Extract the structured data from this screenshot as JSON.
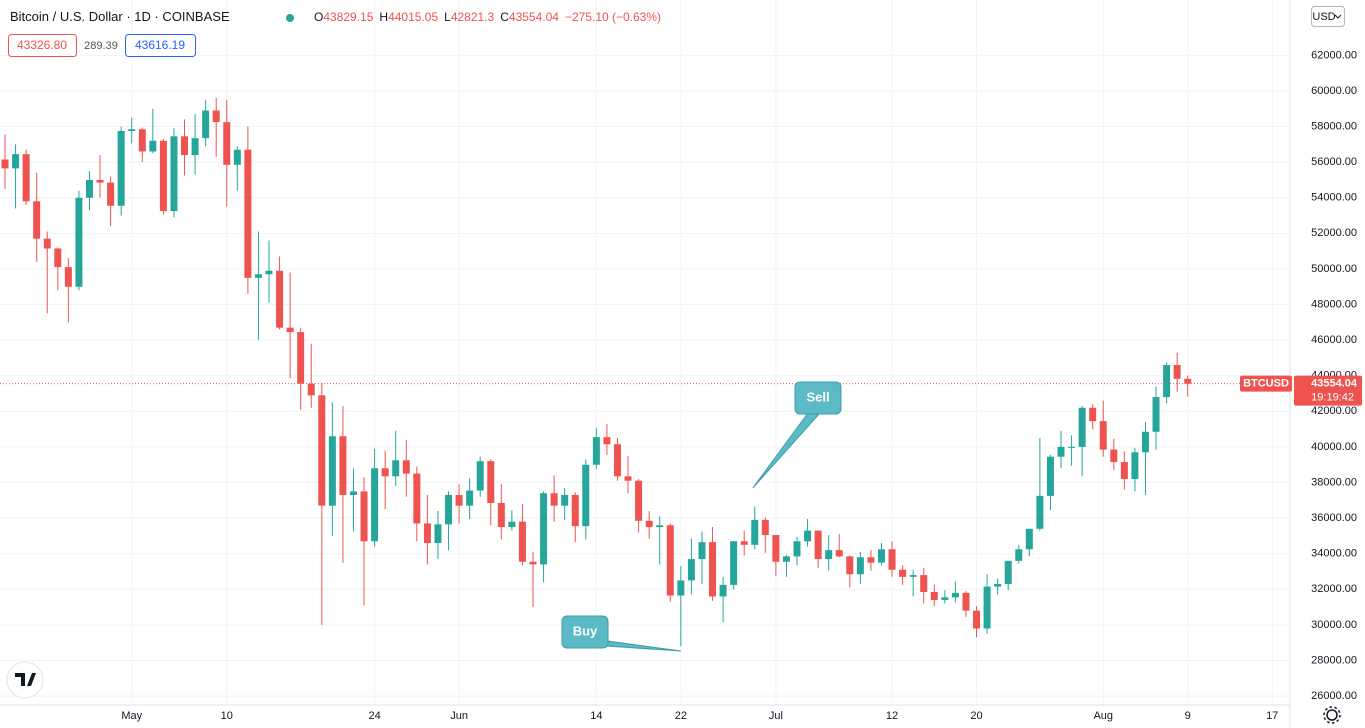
{
  "header": {
    "title": "Bitcoin / U.S. Dollar · 1D · COINBASE",
    "ohlc_labels": [
      "O",
      "H",
      "L",
      "C"
    ],
    "change": {
      "value": -275.1,
      "label": "−275.10 (−0.63%)"
    },
    "bid": {
      "value": 43326.8,
      "label": "43326.80"
    },
    "spread": 289.39,
    "ask": 43616.19,
    "currency": "USD"
  },
  "chart_data": {
    "type": "candlestick",
    "x": [
      "04-19",
      "04-20",
      "04-21",
      "04-22",
      "04-23",
      "04-24",
      "04-25",
      "04-26",
      "04-27",
      "04-28",
      "04-29",
      "04-30",
      "05-01",
      "05-02",
      "05-03",
      "05-04",
      "05-05",
      "05-06",
      "05-07",
      "05-08",
      "05-09",
      "05-10",
      "05-11",
      "05-12",
      "05-13",
      "05-14",
      "05-15",
      "05-16",
      "05-17",
      "05-18",
      "05-19",
      "05-20",
      "05-21",
      "05-22",
      "05-23",
      "05-24",
      "05-25",
      "05-26",
      "05-27",
      "05-28",
      "05-29",
      "05-30",
      "05-31",
      "06-01",
      "06-02",
      "06-03",
      "06-04",
      "06-05",
      "06-06",
      "06-07",
      "06-08",
      "06-09",
      "06-10",
      "06-11",
      "06-12",
      "06-13",
      "06-14",
      "06-15",
      "06-16",
      "06-17",
      "06-18",
      "06-19",
      "06-20",
      "06-21",
      "06-22",
      "06-23",
      "06-24",
      "06-25",
      "06-26",
      "06-27",
      "06-28",
      "06-29",
      "06-30",
      "07-01",
      "07-02",
      "07-03",
      "07-04",
      "07-05",
      "07-06",
      "07-07",
      "07-08",
      "07-09",
      "07-10",
      "07-11",
      "07-12",
      "07-13",
      "07-14",
      "07-15",
      "07-16",
      "07-17",
      "07-18",
      "07-19",
      "07-20",
      "07-21",
      "07-22",
      "07-23",
      "07-24",
      "07-25",
      "07-26",
      "07-27",
      "07-28",
      "07-29",
      "07-30",
      "07-31",
      "08-01",
      "08-02",
      "08-03",
      "08-04",
      "08-05",
      "08-06",
      "08-07",
      "08-08",
      "08-09"
    ],
    "series": [
      {
        "name": "BTCUSD",
        "up_color": "#26a69a",
        "down_color": "#ef5350",
        "ohlc": [
          [
            56150,
            57550,
            54500,
            55650
          ],
          [
            55650,
            57000,
            53400,
            56450
          ],
          [
            56450,
            56700,
            53600,
            53800
          ],
          [
            53800,
            55400,
            50400,
            51700
          ],
          [
            51700,
            52100,
            47500,
            51150
          ],
          [
            51150,
            51200,
            48800,
            50100
          ],
          [
            50100,
            50600,
            47000,
            49000
          ],
          [
            49000,
            54400,
            48800,
            54000
          ],
          [
            54000,
            55500,
            53300,
            55000
          ],
          [
            55000,
            56400,
            54000,
            54850
          ],
          [
            54850,
            55200,
            52400,
            53550
          ],
          [
            53550,
            58000,
            53000,
            57750
          ],
          [
            57750,
            58500,
            57050,
            57850
          ],
          [
            57850,
            57950,
            56000,
            56600
          ],
          [
            56600,
            59000,
            56500,
            57200
          ],
          [
            57200,
            57300,
            53050,
            53250
          ],
          [
            53250,
            57900,
            52900,
            57450
          ],
          [
            57450,
            58400,
            55250,
            56400
          ],
          [
            56400,
            58700,
            55300,
            57350
          ],
          [
            57350,
            59500,
            56900,
            58900
          ],
          [
            58900,
            59600,
            56300,
            58250
          ],
          [
            58250,
            59500,
            53500,
            55850
          ],
          [
            55850,
            56900,
            54400,
            56700
          ],
          [
            56700,
            58000,
            48600,
            49500
          ],
          [
            49500,
            52100,
            46000,
            49700
          ],
          [
            49700,
            51600,
            48100,
            49900
          ],
          [
            49900,
            50700,
            46600,
            46700
          ],
          [
            46700,
            49800,
            43850,
            46450
          ],
          [
            46450,
            46700,
            42100,
            43550
          ],
          [
            43550,
            45800,
            42200,
            42900
          ],
          [
            42900,
            43600,
            30000,
            36700
          ],
          [
            36700,
            42500,
            35000,
            40600
          ],
          [
            40600,
            42300,
            33500,
            37300
          ],
          [
            37300,
            38800,
            35250,
            37500
          ],
          [
            37500,
            38300,
            31100,
            34700
          ],
          [
            34700,
            39900,
            34400,
            38800
          ],
          [
            38800,
            39800,
            36500,
            38350
          ],
          [
            38350,
            40900,
            37800,
            39250
          ],
          [
            39250,
            40400,
            37200,
            38500
          ],
          [
            38500,
            38900,
            34700,
            35700
          ],
          [
            35700,
            37300,
            33400,
            34600
          ],
          [
            34600,
            36400,
            33700,
            35650
          ],
          [
            35650,
            37500,
            34200,
            37300
          ],
          [
            37300,
            37900,
            35700,
            36700
          ],
          [
            36700,
            38250,
            35950,
            37550
          ],
          [
            37550,
            39450,
            37200,
            39200
          ],
          [
            39200,
            39300,
            35600,
            36850
          ],
          [
            36850,
            37900,
            34800,
            35500
          ],
          [
            35500,
            36450,
            35300,
            35800
          ],
          [
            35800,
            36800,
            33350,
            33550
          ],
          [
            33550,
            34100,
            31000,
            33400
          ],
          [
            33400,
            37500,
            32400,
            37400
          ],
          [
            37400,
            38400,
            35800,
            36700
          ],
          [
            36700,
            37700,
            35900,
            37300
          ],
          [
            37300,
            37450,
            34650,
            35550
          ],
          [
            35550,
            39300,
            34800,
            39000
          ],
          [
            39000,
            41050,
            38750,
            40550
          ],
          [
            40550,
            41300,
            39550,
            40150
          ],
          [
            40150,
            40500,
            38100,
            38350
          ],
          [
            38350,
            39500,
            37400,
            38100
          ],
          [
            38100,
            38200,
            35200,
            35850
          ],
          [
            35850,
            36400,
            34850,
            35500
          ],
          [
            35500,
            36100,
            33400,
            35600
          ],
          [
            35600,
            35700,
            31300,
            31650
          ],
          [
            31650,
            33300,
            28800,
            32500
          ],
          [
            32500,
            34850,
            31700,
            33700
          ],
          [
            33700,
            35250,
            32300,
            34650
          ],
          [
            34650,
            35500,
            31350,
            31600
          ],
          [
            31600,
            32700,
            30150,
            32250
          ],
          [
            32250,
            34700,
            32000,
            34700
          ],
          [
            34700,
            35300,
            33900,
            34500
          ],
          [
            34500,
            36650,
            34250,
            35900
          ],
          [
            35900,
            36050,
            34050,
            35050
          ],
          [
            35050,
            35050,
            32750,
            33550
          ],
          [
            33550,
            33950,
            32700,
            33850
          ],
          [
            33850,
            34950,
            33350,
            34700
          ],
          [
            34700,
            35950,
            34400,
            35300
          ],
          [
            35300,
            35300,
            33200,
            33700
          ],
          [
            33700,
            35050,
            33050,
            34200
          ],
          [
            34200,
            35100,
            33800,
            33850
          ],
          [
            33850,
            33900,
            32100,
            32850
          ],
          [
            32850,
            34100,
            32300,
            33800
          ],
          [
            33800,
            34200,
            33050,
            33500
          ],
          [
            33500,
            34600,
            33350,
            34250
          ],
          [
            34250,
            34700,
            32700,
            33100
          ],
          [
            33100,
            33350,
            32250,
            32700
          ],
          [
            32700,
            33100,
            31600,
            32800
          ],
          [
            32800,
            33200,
            31200,
            31850
          ],
          [
            31850,
            32250,
            31050,
            31400
          ],
          [
            31400,
            31950,
            31200,
            31550
          ],
          [
            31550,
            32450,
            31250,
            31800
          ],
          [
            31800,
            31900,
            30450,
            30800
          ],
          [
            30800,
            31050,
            29300,
            29800
          ],
          [
            29800,
            32850,
            29500,
            32150
          ],
          [
            32150,
            32600,
            31700,
            32300
          ],
          [
            32300,
            33600,
            31950,
            33600
          ],
          [
            33600,
            34500,
            33450,
            34250
          ],
          [
            34250,
            35400,
            33850,
            35400
          ],
          [
            35400,
            40500,
            35300,
            37250
          ],
          [
            37250,
            39550,
            36450,
            39450
          ],
          [
            39450,
            40900,
            38800,
            40000
          ],
          [
            40000,
            40650,
            38950,
            40000
          ],
          [
            40000,
            42300,
            38350,
            42200
          ],
          [
            42200,
            42400,
            41000,
            41450
          ],
          [
            41450,
            42600,
            39450,
            39850
          ],
          [
            39850,
            40450,
            38700,
            39150
          ],
          [
            39150,
            39750,
            37600,
            38200
          ],
          [
            38200,
            39950,
            37500,
            39700
          ],
          [
            39700,
            41400,
            37300,
            40850
          ],
          [
            40850,
            43400,
            39850,
            42800
          ],
          [
            42800,
            44750,
            42450,
            44600
          ],
          [
            44600,
            45300,
            43100,
            43829.15
          ],
          [
            43829.15,
            44015.05,
            42821.3,
            43554.04
          ]
        ]
      }
    ],
    "countdown": "19:19:42",
    "ylim": [
      25500,
      65110
    ],
    "yticks": [
      {
        "value": 26000,
        "label": "26000.00"
      },
      {
        "value": 28000,
        "label": "28000.00"
      },
      {
        "value": 30000,
        "label": "30000.00"
      },
      {
        "value": 32000,
        "label": "32000.00"
      },
      {
        "value": 34000,
        "label": "34000.00"
      },
      {
        "value": 36000,
        "label": "36000.00"
      },
      {
        "value": 38000,
        "label": "38000.00"
      },
      {
        "value": 40000,
        "label": "40000.00"
      },
      {
        "value": 42000,
        "label": "42000.00"
      },
      {
        "value": 44000,
        "label": "44000.00"
      },
      {
        "value": 46000,
        "label": "46000.00"
      },
      {
        "value": 48000,
        "label": "48000.00"
      },
      {
        "value": 50000,
        "label": "50000.00"
      },
      {
        "value": 52000,
        "label": "52000.00"
      },
      {
        "value": 54000,
        "label": "54000.00"
      },
      {
        "value": 56000,
        "label": "56000.00"
      },
      {
        "value": 58000,
        "label": "58000.00"
      },
      {
        "value": 60000,
        "label": "60000.00"
      },
      {
        "value": 62000,
        "label": "62000.00"
      }
    ],
    "xticks": [
      {
        "value": "05-01",
        "label": "May"
      },
      {
        "value": "05-10",
        "label": "10"
      },
      {
        "value": "05-24",
        "label": "24"
      },
      {
        "value": "06-01",
        "label": "Jun"
      },
      {
        "value": "06-14",
        "label": "14"
      },
      {
        "value": "06-22",
        "label": "22"
      },
      {
        "value": "07-01",
        "label": "Jul"
      },
      {
        "value": "07-12",
        "label": "12"
      },
      {
        "value": "07-20",
        "label": "20"
      },
      {
        "value": "08-01",
        "label": "Aug"
      },
      {
        "value": "08-09",
        "label": "9"
      },
      {
        "value": "08-17",
        "label": "17"
      }
    ],
    "grid": true,
    "annotations": [
      {
        "text": "Buy",
        "x": "06-22"
      },
      {
        "text": "Sell",
        "x": "06-29"
      }
    ]
  }
}
